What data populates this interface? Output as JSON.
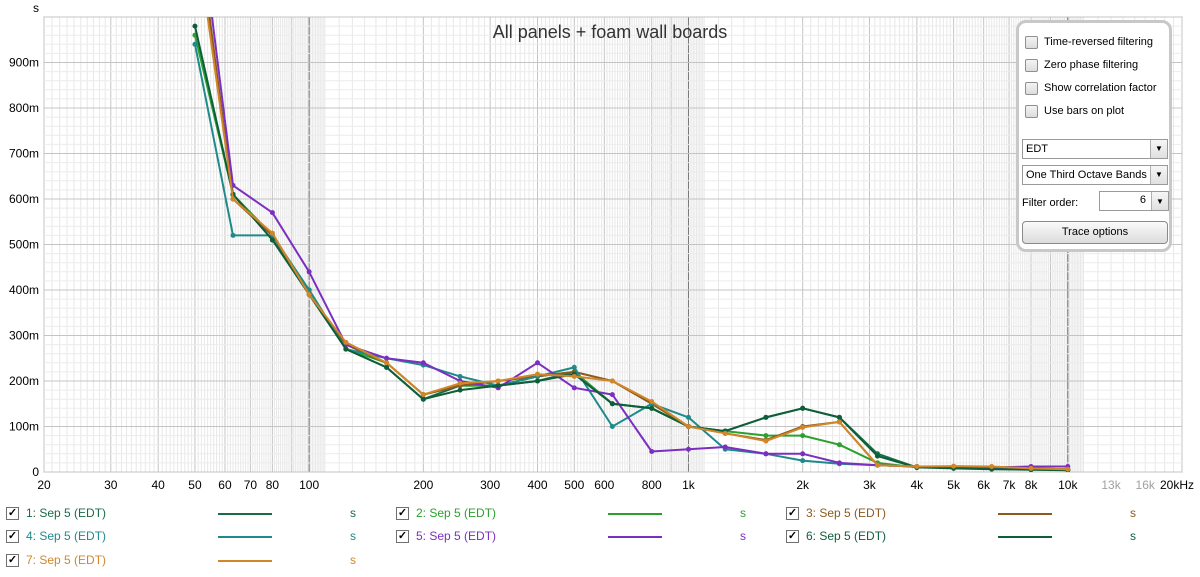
{
  "chart_data": {
    "type": "line",
    "title": "All panels + foam wall boards",
    "y_unit": "s",
    "x_scale": "log",
    "xlim": [
      20,
      20000
    ],
    "ylim": [
      0,
      1.0
    ],
    "x_tick_labels": [
      {
        "f": 20,
        "label": "20"
      },
      {
        "f": 30,
        "label": "30"
      },
      {
        "f": 40,
        "label": "40"
      },
      {
        "f": 50,
        "label": "50"
      },
      {
        "f": 60,
        "label": "60"
      },
      {
        "f": 70,
        "label": "70"
      },
      {
        "f": 80,
        "label": "80"
      },
      {
        "f": 100,
        "label": "100"
      },
      {
        "f": 200,
        "label": "200"
      },
      {
        "f": 300,
        "label": "300"
      },
      {
        "f": 400,
        "label": "400"
      },
      {
        "f": 500,
        "label": "500"
      },
      {
        "f": 600,
        "label": "600"
      },
      {
        "f": 800,
        "label": "800"
      },
      {
        "f": 1000,
        "label": "1k"
      },
      {
        "f": 2000,
        "label": "2k"
      },
      {
        "f": 3000,
        "label": "3k"
      },
      {
        "f": 4000,
        "label": "4k"
      },
      {
        "f": 5000,
        "label": "5k"
      },
      {
        "f": 6000,
        "label": "6k"
      },
      {
        "f": 7000,
        "label": "7k"
      },
      {
        "f": 8000,
        "label": "8k"
      },
      {
        "f": 10000,
        "label": "10k"
      },
      {
        "f": 13000,
        "label": "13k",
        "dim": true
      },
      {
        "f": 16000,
        "label": "16k",
        "dim": true
      },
      {
        "f": 20000,
        "label": "20kHz"
      }
    ],
    "y_tick_labels": [
      {
        "v": 0,
        "label": "0"
      },
      {
        "v": 0.1,
        "label": "100m"
      },
      {
        "v": 0.2,
        "label": "200m"
      },
      {
        "v": 0.3,
        "label": "300m"
      },
      {
        "v": 0.4,
        "label": "400m"
      },
      {
        "v": 0.5,
        "label": "500m"
      },
      {
        "v": 0.6,
        "label": "600m"
      },
      {
        "v": 0.7,
        "label": "700m"
      },
      {
        "v": 0.8,
        "label": "800m"
      },
      {
        "v": 0.9,
        "label": "900m"
      }
    ],
    "x": [
      50,
      63,
      80,
      100,
      125,
      160,
      200,
      250,
      315,
      400,
      500,
      630,
      800,
      1000,
      1250,
      1600,
      2000,
      2500,
      3150,
      4000,
      5000,
      6300,
      8000,
      10000
    ],
    "series": [
      {
        "name": "1: Sep 5 (EDT)",
        "color": "#1a6b47",
        "values": [
          1.2,
          0.61,
          0.51,
          0.4,
          0.27,
          0.23,
          0.16,
          0.19,
          0.19,
          0.2,
          0.22,
          0.15,
          0.14,
          0.1,
          0.09,
          0.12,
          0.14,
          0.12,
          0.04,
          0.01,
          0.01,
          0.008,
          0.006,
          0.005
        ]
      },
      {
        "name": "2: Sep 5 (EDT)",
        "color": "#2ca02c",
        "values": [
          0.96,
          0.61,
          0.52,
          0.4,
          0.27,
          0.24,
          0.17,
          0.19,
          0.19,
          0.21,
          0.22,
          0.15,
          0.14,
          0.1,
          0.09,
          0.08,
          0.08,
          0.06,
          0.02,
          0.01,
          0.01,
          0.008,
          0.006,
          0.005
        ]
      },
      {
        "name": "3: Sep 5 (EDT)",
        "color": "#8b5a1e",
        "values": [
          1.25,
          0.6,
          0.52,
          0.39,
          0.28,
          0.24,
          0.17,
          0.19,
          0.2,
          0.21,
          0.22,
          0.2,
          0.15,
          0.1,
          0.085,
          0.07,
          0.1,
          0.11,
          0.015,
          0.012,
          0.012,
          0.01,
          0.008,
          0.006
        ]
      },
      {
        "name": "4: Sep 5 (EDT)",
        "color": "#1f8a8a",
        "values": [
          0.94,
          0.52,
          0.52,
          0.4,
          0.27,
          0.25,
          0.235,
          0.21,
          0.19,
          0.21,
          0.23,
          0.1,
          0.15,
          0.12,
          0.05,
          0.04,
          0.025,
          0.018,
          0.015,
          0.012,
          0.01,
          0.008,
          0.006,
          0.005
        ]
      },
      {
        "name": "5: Sep 5 (EDT)",
        "color": "#7b2fc0",
        "values": [
          1.3,
          0.63,
          0.57,
          0.44,
          0.28,
          0.25,
          0.24,
          0.2,
          0.185,
          0.24,
          0.185,
          0.17,
          0.045,
          0.05,
          0.055,
          0.04,
          0.04,
          0.02,
          0.015,
          0.012,
          0.01,
          0.01,
          0.012,
          0.012
        ]
      },
      {
        "name": "6: Sep 5 (EDT)",
        "color": "#0f5e3a",
        "values": [
          0.98,
          0.61,
          0.51,
          0.39,
          0.27,
          0.23,
          0.16,
          0.18,
          0.19,
          0.2,
          0.215,
          0.15,
          0.14,
          0.1,
          0.09,
          0.12,
          0.14,
          0.12,
          0.035,
          0.01,
          0.008,
          0.006,
          0.005,
          0.004
        ]
      },
      {
        "name": "7: Sep 5 (EDT)",
        "color": "#d2862a",
        "values": [
          1.2,
          0.6,
          0.525,
          0.39,
          0.285,
          0.24,
          0.17,
          0.195,
          0.2,
          0.215,
          0.21,
          0.2,
          0.155,
          0.1,
          0.085,
          0.068,
          0.098,
          0.11,
          0.015,
          0.012,
          0.013,
          0.012,
          0.008,
          0.006
        ]
      }
    ]
  },
  "options_panel": {
    "checkboxes": [
      {
        "label": "Time-reversed filtering"
      },
      {
        "label": "Zero phase filtering"
      },
      {
        "label": "Show correlation factor"
      },
      {
        "label": "Use bars on plot"
      }
    ],
    "metric_select": "EDT",
    "band_select": "One Third Octave Bands",
    "filter_order_label": "Filter order:",
    "filter_order_value": "6",
    "trace_button": "Trace options"
  },
  "legend_unit": "s",
  "legend_check": "✓"
}
